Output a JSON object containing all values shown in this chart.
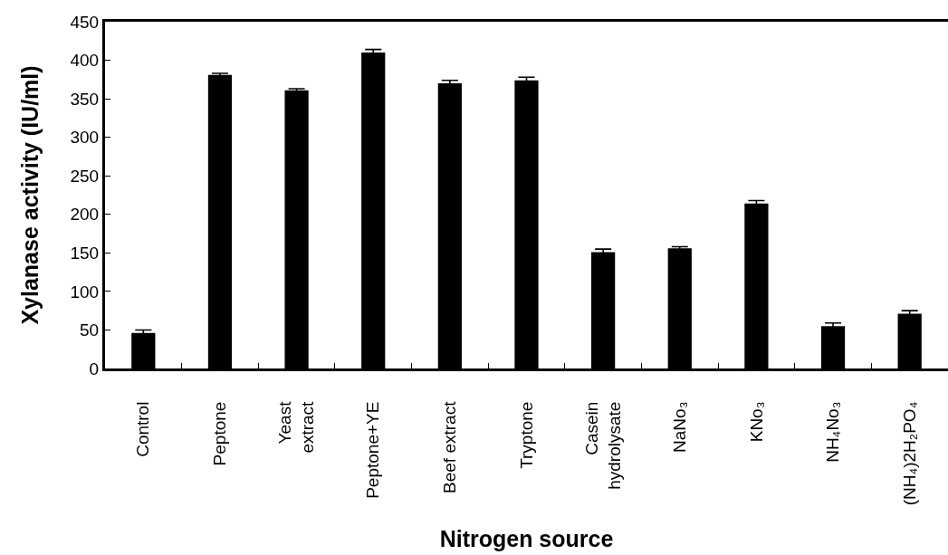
{
  "chart_data": {
    "type": "bar",
    "xlabel": "Nitrogen source",
    "ylabel": "Xylanase activity (IU/ml)",
    "categories": [
      "Control",
      "Peptone",
      "Yeast\nextract",
      "Peptone+YE",
      "Beef extract",
      "Tryptone",
      "Casein\nhydrolysate",
      "NaNo₃",
      "KNo₃",
      "NH₄No₃",
      "(NH₄)2H₂PO₄"
    ],
    "values": [
      46,
      381,
      361,
      410,
      370,
      374,
      151,
      156,
      214,
      55,
      71
    ],
    "errors": [
      4,
      2,
      2,
      4,
      4,
      4,
      4,
      2,
      4,
      4,
      4
    ],
    "color": "#000000",
    "ylim": [
      0,
      450
    ],
    "yticks": [
      0,
      50,
      100,
      150,
      200,
      250,
      300,
      350,
      400,
      450
    ]
  }
}
